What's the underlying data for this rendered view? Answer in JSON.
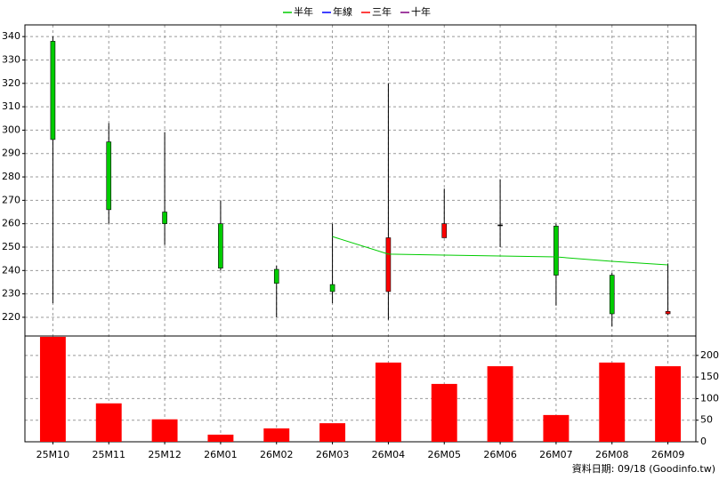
{
  "chart_data": [
    {
      "type": "candlestick",
      "categories": [
        "25M10",
        "25M11",
        "25M12",
        "26M01",
        "26M02",
        "26M03",
        "26M04",
        "26M05",
        "26M06",
        "26M07",
        "26M08",
        "26M09"
      ],
      "open": [
        338,
        295,
        265,
        260,
        240.5,
        234,
        231,
        254,
        259.5,
        259,
        238,
        221.5
      ],
      "high": [
        340,
        303,
        299,
        270,
        242,
        260,
        320,
        275,
        279,
        260,
        239,
        243
      ],
      "low": [
        226,
        260,
        251,
        240,
        220,
        226,
        219,
        254,
        250,
        225,
        216,
        221
      ],
      "close": [
        296,
        266,
        260,
        241,
        234.5,
        231,
        254,
        260,
        259.5,
        238,
        221.5,
        222.5
      ],
      "up_color": "#ff0000",
      "down_color": "#00cc00",
      "series": [
        {
          "name": "半年",
          "color": "#00cc00",
          "values": [
            null,
            null,
            null,
            null,
            null,
            254.5,
            247,
            246.6,
            246.2,
            245.8,
            243.9,
            242.4
          ]
        },
        {
          "name": "年線",
          "color": "#0000ff",
          "values": [
            null,
            null,
            null,
            null,
            null,
            null,
            null,
            null,
            null,
            null,
            null,
            null
          ]
        },
        {
          "name": "三年",
          "color": "#ff0000",
          "values": [
            null,
            null,
            null,
            null,
            null,
            null,
            null,
            null,
            null,
            null,
            null,
            null
          ]
        },
        {
          "name": "十年",
          "color": "#800080",
          "values": [
            null,
            null,
            null,
            null,
            null,
            null,
            null,
            null,
            null,
            null,
            null,
            null
          ]
        }
      ],
      "ylim": [
        212,
        345
      ],
      "yticks": [
        220,
        230,
        240,
        250,
        260,
        270,
        280,
        290,
        300,
        310,
        320,
        330,
        340
      ],
      "grid": true
    },
    {
      "type": "bar",
      "values": [
        243,
        89,
        52,
        16.5,
        31,
        43,
        183.5,
        134,
        175,
        62,
        183.5,
        175
      ],
      "color": "#ff0000",
      "ylim": [
        0,
        245
      ],
      "yticks": [
        0,
        50,
        100,
        150,
        200
      ],
      "grid": true
    }
  ],
  "source": "資料日期: 09/18 (Goodinfo.tw)"
}
